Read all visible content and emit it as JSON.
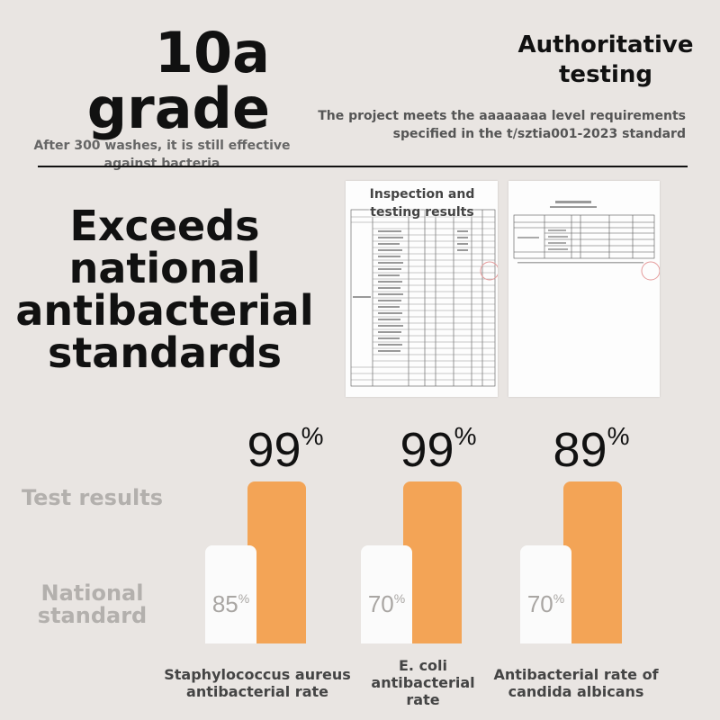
{
  "header": {
    "grade_line1": "10a",
    "grade_line2": "grade",
    "washes_note": "After 300 washes, it is still effective against bacteria",
    "auth_title": "Authoritative testing",
    "auth_desc": "The project meets the aaaaaaaa level requirements specified in the t/sztia001-2023 standard"
  },
  "headline": "Exceeds national antibacterial standards",
  "reports": {
    "label": "Inspection and testing results"
  },
  "rows": {
    "test_results": "Test results",
    "national_standard": "National standard"
  },
  "colors": {
    "accent": "#f3a456",
    "background": "#e9e5e2"
  },
  "chart_data": {
    "type": "bar",
    "categories": [
      "Staphylococcus aureus antibacterial rate",
      "E. coli antibacterial rate",
      "Antibacterial rate of candida albicans"
    ],
    "series": [
      {
        "name": "Test results",
        "values": [
          99,
          99,
          89
        ]
      },
      {
        "name": "National standard",
        "values": [
          85,
          70,
          70
        ]
      }
    ],
    "unit": "%"
  },
  "bars": [
    {
      "test": "99",
      "standard": "85",
      "unit": "%",
      "label": "Staphylococcus aureus antibacterial rate"
    },
    {
      "test": "99",
      "standard": "70",
      "unit": "%",
      "label": "E. coli antibacterial rate"
    },
    {
      "test": "89",
      "standard": "70",
      "unit": "%",
      "label": "Antibacterial rate of candida albicans"
    }
  ]
}
